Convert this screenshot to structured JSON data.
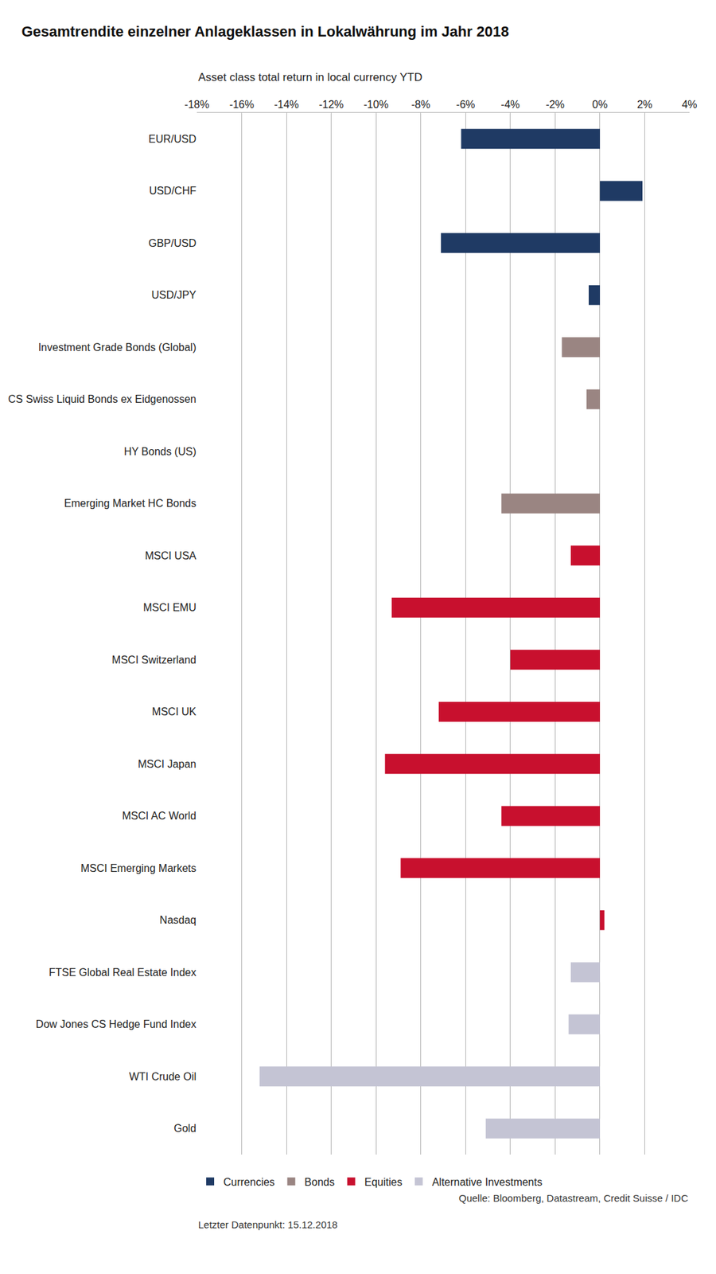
{
  "chart_data": {
    "type": "bar",
    "title": "Gesamtrendite einzelner Anlageklassen in Lokalwährung im Jahr 2018",
    "subtitle": "Asset class total return in local currency YTD",
    "orientation": "horizontal",
    "categories": [
      "EUR/USD",
      "USD/CHF",
      "GBP/USD",
      "USD/JPY",
      "Investment Grade Bonds (Global)",
      "CS Swiss Liquid Bonds ex Eidgenossen",
      "HY Bonds (US)",
      "Emerging Market HC Bonds",
      "MSCI USA",
      "MSCI EMU",
      "MSCI Switzerland",
      "MSCI UK",
      "MSCI Japan",
      "MSCI AC World",
      "MSCI Emerging Markets",
      "Nasdaq",
      "FTSE Global Real Estate Index",
      "Dow Jones CS Hedge Fund Index",
      "WTI Crude Oil",
      "Gold"
    ],
    "series": [
      {
        "name": "Currencies",
        "color": "#1f3a64",
        "values": [
          -6.2,
          1.9,
          -7.1,
          -0.5,
          null,
          null,
          null,
          null,
          null,
          null,
          null,
          null,
          null,
          null,
          null,
          null,
          null,
          null,
          null,
          null
        ]
      },
      {
        "name": "Bonds",
        "color": "#9a8582",
        "values": [
          null,
          null,
          null,
          null,
          -1.7,
          -0.6,
          0.0,
          -4.4,
          null,
          null,
          null,
          null,
          null,
          null,
          null,
          null,
          null,
          null,
          null,
          null
        ]
      },
      {
        "name": "Equities",
        "color": "#c8102e",
        "values": [
          null,
          null,
          null,
          null,
          null,
          null,
          null,
          null,
          -1.3,
          -9.3,
          -4.0,
          -7.2,
          -9.6,
          -4.4,
          -8.9,
          0.2,
          null,
          null,
          null,
          null
        ]
      },
      {
        "name": "Alternative Investments",
        "color": "#c4c4d4",
        "values": [
          null,
          null,
          null,
          null,
          null,
          null,
          null,
          null,
          null,
          null,
          null,
          null,
          null,
          null,
          null,
          null,
          -1.3,
          -1.4,
          -15.2,
          -5.1
        ]
      }
    ],
    "xlim": [
      -18,
      4
    ],
    "xticks": [
      {
        "value": -18,
        "label": "-18%"
      },
      {
        "value": -16,
        "label": "-16%"
      },
      {
        "value": -14,
        "label": "-14%"
      },
      {
        "value": -12,
        "label": "-12%"
      },
      {
        "value": -10,
        "label": "-10%"
      },
      {
        "value": -8,
        "label": "-8%"
      },
      {
        "value": -6,
        "label": "-6%"
      },
      {
        "value": -4,
        "label": "-4%"
      },
      {
        "value": -2,
        "label": "-2%"
      },
      {
        "value": 0,
        "label": "0%"
      },
      {
        "value": 2,
        "label": "2%"
      },
      {
        "value": 4,
        "label": "4%"
      }
    ],
    "grid": true,
    "legend": "bottom",
    "annotations": [
      "Quelle: Bloomberg, Datastream, Credit Suisse / IDC",
      "Letzter Datenpunkt: 15.12.2018"
    ]
  }
}
